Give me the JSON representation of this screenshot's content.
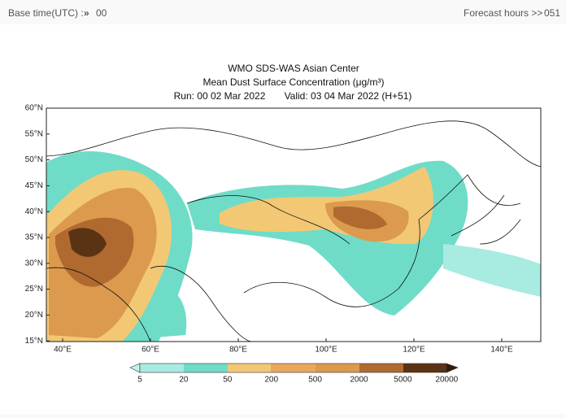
{
  "header": {
    "base_time_label": "Base time(UTC) :",
    "base_time_arrows": "»",
    "base_time_value": "00",
    "forecast_label": "Forecast hours >>",
    "forecast_value": "051"
  },
  "map": {
    "title": "WMO SDS-WAS Asian Center",
    "subtitle": "Mean Dust Surface Concentration (μg/m³)",
    "run": "Run: 00 02 Mar 2022",
    "valid": "Valid: 03 04 Mar 2022 (H+51)",
    "lat_labels": [
      "60°N",
      "55°N",
      "50°N",
      "45°N",
      "40°N",
      "35°N",
      "30°N",
      "25°N",
      "20°N",
      "15°N"
    ],
    "lon_labels": [
      "40°E",
      "60°E",
      "80°E",
      "100°E",
      "120°E",
      "140°E"
    ],
    "colorbar_labels": [
      "5",
      "20",
      "50",
      "200",
      "500",
      "2000",
      "5000",
      "20000"
    ]
  }
}
